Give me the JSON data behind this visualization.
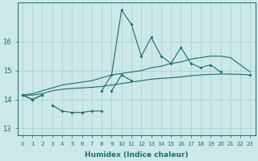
{
  "xlabel": "Humidex (Indice chaleur)",
  "bg_color": "#cce8e8",
  "grid_color": "#aacccc",
  "line_color": "#1a6e6e",
  "xlim": [
    -0.5,
    23.5
  ],
  "ylim": [
    12.75,
    17.35
  ],
  "yticks": [
    13,
    14,
    15,
    16
  ],
  "xticks": [
    0,
    1,
    2,
    3,
    4,
    5,
    6,
    7,
    8,
    9,
    10,
    11,
    12,
    13,
    14,
    15,
    16,
    17,
    18,
    19,
    20,
    21,
    22,
    23
  ],
  "x_all": [
    0,
    1,
    2,
    3,
    4,
    5,
    6,
    7,
    8,
    9,
    10,
    11,
    12,
    13,
    14,
    15,
    16,
    17,
    18,
    19,
    20,
    21,
    22,
    23
  ],
  "line_jagged": [
    14.15,
    14.0,
    14.15,
    null,
    null,
    null,
    null,
    null,
    14.3,
    14.85,
    17.1,
    16.6,
    15.5,
    16.15,
    15.5,
    15.25,
    15.8,
    15.25,
    15.1,
    15.2,
    14.95,
    null,
    null,
    14.85
  ],
  "line_low": [
    null,
    null,
    null,
    13.8,
    13.6,
    13.55,
    13.55,
    13.6,
    13.6,
    null,
    null,
    null,
    null,
    null,
    null,
    null,
    null,
    null,
    null,
    null,
    null,
    null,
    null,
    null
  ],
  "line_low2": [
    14.15,
    14.0,
    14.15,
    null,
    null,
    null,
    null,
    null,
    null,
    14.3,
    14.85,
    14.65,
    null,
    null,
    null,
    null,
    null,
    null,
    null,
    null,
    null,
    null,
    null,
    null
  ],
  "line_upper_env": [
    14.15,
    14.2,
    14.3,
    14.4,
    14.5,
    14.55,
    14.6,
    14.65,
    14.75,
    14.85,
    14.9,
    14.95,
    15.0,
    15.1,
    15.15,
    15.25,
    15.3,
    15.4,
    15.45,
    15.5,
    15.5,
    15.45,
    15.2,
    14.95
  ],
  "line_lower_env": [
    14.15,
    14.15,
    14.2,
    14.3,
    14.35,
    14.38,
    14.4,
    14.42,
    14.45,
    14.5,
    14.55,
    14.6,
    14.65,
    14.7,
    14.73,
    14.75,
    14.78,
    14.82,
    14.85,
    14.87,
    14.88,
    14.88,
    14.87,
    14.85
  ]
}
